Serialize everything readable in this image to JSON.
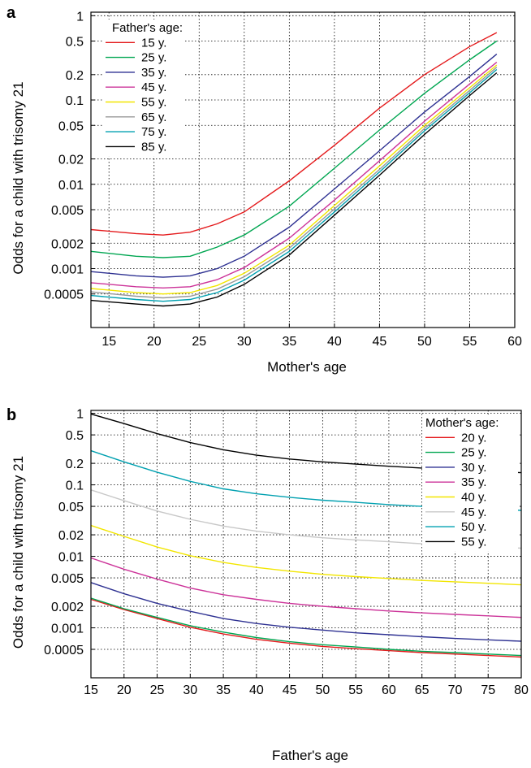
{
  "chart_data": [
    {
      "panel_label": "a",
      "type": "line",
      "xlabel": "Mother's age",
      "ylabel": "Odds for a child with trisomy 21",
      "xlim": [
        13,
        60
      ],
      "ylim": [
        0.0002,
        1.1
      ],
      "yscale": "log",
      "grid": true,
      "xticks": [
        15,
        20,
        25,
        30,
        35,
        40,
        45,
        50,
        55,
        60
      ],
      "xtick_labels": [
        "15",
        "20",
        "25",
        "30",
        "35",
        "40",
        "45",
        "50",
        "55",
        "60"
      ],
      "yticks": [
        1,
        0.5,
        0.2,
        0.1,
        0.05,
        0.02,
        0.01,
        0.005,
        0.002,
        0.001,
        0.0005
      ],
      "ytick_labels": [
        "1",
        "0.5",
        "0.2",
        "0.1",
        "0.05",
        "0.02",
        "0.01",
        "0.005",
        "0.002",
        "0.001",
        "0.0005"
      ],
      "legend_title": "Father's age:",
      "legend_position": "top-left",
      "series": [
        {
          "name": "15 y.",
          "color": "#e41a1c",
          "x": [
            13,
            18,
            21,
            24,
            27,
            30,
            35,
            40,
            45,
            50,
            55,
            58
          ],
          "y": [
            0.0029,
            0.0026,
            0.0025,
            0.0027,
            0.0034,
            0.0047,
            0.011,
            0.029,
            0.08,
            0.2,
            0.43,
            0.63
          ]
        },
        {
          "name": "25 y.",
          "color": "#00a651",
          "x": [
            13,
            18,
            21,
            24,
            27,
            30,
            35,
            40,
            45,
            50,
            55,
            58
          ],
          "y": [
            0.0016,
            0.0014,
            0.00135,
            0.0014,
            0.0018,
            0.0025,
            0.0055,
            0.0155,
            0.044,
            0.12,
            0.3,
            0.5
          ]
        },
        {
          "name": "35 y.",
          "color": "#2e3192",
          "x": [
            13,
            18,
            21,
            24,
            27,
            30,
            35,
            40,
            45,
            50,
            55,
            58
          ],
          "y": [
            0.00092,
            0.00082,
            0.00079,
            0.00082,
            0.001,
            0.0014,
            0.0031,
            0.0088,
            0.025,
            0.072,
            0.19,
            0.35
          ]
        },
        {
          "name": "45 y.",
          "color": "#cc3399",
          "x": [
            13,
            18,
            21,
            24,
            27,
            30,
            35,
            40,
            45,
            50,
            55,
            58
          ],
          "y": [
            0.00068,
            0.00061,
            0.00059,
            0.00061,
            0.00074,
            0.00103,
            0.0023,
            0.0065,
            0.019,
            0.056,
            0.155,
            0.28
          ]
        },
        {
          "name": "55 y.",
          "color": "#f2e600",
          "x": [
            13,
            18,
            21,
            24,
            27,
            30,
            35,
            40,
            45,
            50,
            55,
            58
          ],
          "y": [
            0.00058,
            0.00052,
            0.0005,
            0.00052,
            0.00063,
            0.00088,
            0.0019,
            0.0056,
            0.0165,
            0.05,
            0.14,
            0.26
          ]
        },
        {
          "name": "65 y.",
          "color": "#999999",
          "x": [
            13,
            18,
            21,
            24,
            27,
            30,
            35,
            40,
            45,
            50,
            55,
            58
          ],
          "y": [
            0.00053,
            0.00047,
            0.00045,
            0.00047,
            0.00057,
            0.0008,
            0.00175,
            0.0051,
            0.015,
            0.046,
            0.13,
            0.245
          ]
        },
        {
          "name": "75 y.",
          "color": "#00a0b0",
          "x": [
            13,
            18,
            21,
            24,
            27,
            30,
            35,
            40,
            45,
            50,
            55,
            58
          ],
          "y": [
            0.00048,
            0.00043,
            0.00041,
            0.00043,
            0.00052,
            0.00073,
            0.0016,
            0.0047,
            0.014,
            0.043,
            0.122,
            0.23
          ]
        },
        {
          "name": "85 y.",
          "color": "#000000",
          "x": [
            13,
            18,
            21,
            24,
            27,
            30,
            35,
            40,
            45,
            50,
            55,
            58
          ],
          "y": [
            0.00042,
            0.00038,
            0.00036,
            0.00038,
            0.00046,
            0.00065,
            0.00145,
            0.0043,
            0.0128,
            0.039,
            0.113,
            0.21
          ]
        }
      ]
    },
    {
      "panel_label": "b",
      "type": "line",
      "xlabel": "Father's age",
      "ylabel": "Odds for a child with trisomy 21",
      "xlim": [
        15,
        80
      ],
      "ylim": [
        0.0002,
        1.1
      ],
      "yscale": "log",
      "grid": true,
      "xticks": [
        15,
        20,
        25,
        30,
        35,
        40,
        45,
        50,
        55,
        60,
        65,
        70,
        75,
        80
      ],
      "xtick_labels": [
        "15",
        "20",
        "25",
        "30",
        "35",
        "40",
        "45",
        "50",
        "55",
        "60",
        "65",
        "70",
        "75",
        "80"
      ],
      "yticks": [
        1,
        0.5,
        0.2,
        0.1,
        0.05,
        0.02,
        0.01,
        0.005,
        0.002,
        0.001,
        0.0005
      ],
      "ytick_labels": [
        "1",
        "0.5",
        "0.2",
        "0.1",
        "0.05",
        "0.02",
        "0.01",
        "0.005",
        "0.002",
        "0.001",
        "0.0005"
      ],
      "legend_title": "Mother's age:",
      "legend_position": "top-right",
      "series": [
        {
          "name": "20 y.",
          "color": "#e41a1c",
          "x": [
            15,
            20,
            25,
            30,
            35,
            40,
            45,
            50,
            55,
            60,
            65,
            70,
            75,
            80
          ],
          "y": [
            0.0025,
            0.0018,
            0.00135,
            0.00102,
            0.00082,
            0.00069,
            0.00061,
            0.00055,
            0.00051,
            0.00048,
            0.00045,
            0.00043,
            0.00041,
            0.00039
          ]
        },
        {
          "name": "25 y.",
          "color": "#00a651",
          "x": [
            15,
            20,
            25,
            30,
            35,
            40,
            45,
            50,
            55,
            60,
            65,
            70,
            75,
            80
          ],
          "y": [
            0.0026,
            0.00185,
            0.0014,
            0.00107,
            0.00087,
            0.00073,
            0.00064,
            0.00058,
            0.00054,
            0.0005,
            0.00047,
            0.00045,
            0.00043,
            0.00041
          ]
        },
        {
          "name": "30 y.",
          "color": "#2e3192",
          "x": [
            15,
            20,
            25,
            30,
            35,
            40,
            45,
            50,
            55,
            60,
            65,
            70,
            75,
            80
          ],
          "y": [
            0.0043,
            0.003,
            0.0022,
            0.0017,
            0.00135,
            0.00115,
            0.00102,
            0.00093,
            0.00085,
            0.0008,
            0.00075,
            0.00071,
            0.00068,
            0.00065
          ]
        },
        {
          "name": "35 y.",
          "color": "#cc3399",
          "x": [
            15,
            20,
            25,
            30,
            35,
            40,
            45,
            50,
            55,
            60,
            65,
            70,
            75,
            80
          ],
          "y": [
            0.0095,
            0.0066,
            0.0048,
            0.0036,
            0.0029,
            0.0025,
            0.0022,
            0.002,
            0.00185,
            0.00172,
            0.00162,
            0.00154,
            0.00147,
            0.0014
          ]
        },
        {
          "name": "40 y.",
          "color": "#f2e600",
          "x": [
            15,
            20,
            25,
            30,
            35,
            40,
            45,
            50,
            55,
            60,
            65,
            70,
            75,
            80
          ],
          "y": [
            0.027,
            0.019,
            0.0135,
            0.0102,
            0.0082,
            0.007,
            0.0062,
            0.0056,
            0.0052,
            0.0049,
            0.0046,
            0.0044,
            0.0042,
            0.004
          ]
        },
        {
          "name": "45 y.",
          "color": "#c8c8c8",
          "x": [
            15,
            20,
            25,
            30,
            35,
            40,
            45,
            50,
            55,
            60,
            65,
            70,
            75,
            80
          ],
          "y": [
            0.085,
            0.06,
            0.043,
            0.033,
            0.0265,
            0.0225,
            0.02,
            0.0182,
            0.017,
            0.016,
            0.015,
            0.0143,
            0.0137,
            0.013
          ]
        },
        {
          "name": "50 y.",
          "color": "#00a0b0",
          "x": [
            15,
            20,
            25,
            30,
            35,
            40,
            45,
            50,
            55,
            60,
            65,
            70,
            75,
            80
          ],
          "y": [
            0.3,
            0.21,
            0.15,
            0.112,
            0.088,
            0.075,
            0.067,
            0.061,
            0.057,
            0.053,
            0.05,
            0.048,
            0.046,
            0.044
          ]
        },
        {
          "name": "55 y.",
          "color": "#000000",
          "x": [
            15,
            20,
            25,
            30,
            35,
            40,
            45,
            50,
            55,
            60,
            65,
            70,
            75,
            80
          ],
          "y": [
            0.98,
            0.72,
            0.52,
            0.39,
            0.31,
            0.26,
            0.23,
            0.21,
            0.195,
            0.182,
            0.172,
            0.163,
            0.155,
            0.148
          ]
        }
      ]
    }
  ]
}
